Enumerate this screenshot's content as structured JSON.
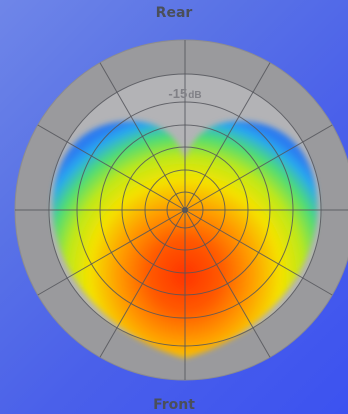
{
  "labels": {
    "rear": "Rear",
    "front": "Front",
    "ring_db_value": "-15",
    "ring_db_unit": "dB"
  },
  "colors": {
    "background_top": "#6f86e8",
    "background_bottom": "#3c52f0",
    "outer_ring": "#9a9a9d",
    "inner_ring": "#b2b2b5",
    "grid_line": "#55565c",
    "heat_hot": "#ff3a00",
    "heat_mid": "#f6e800",
    "heat_cool": "#2f8cff"
  },
  "pattern": {
    "type": "cardioid",
    "orientation": "front-facing"
  }
}
